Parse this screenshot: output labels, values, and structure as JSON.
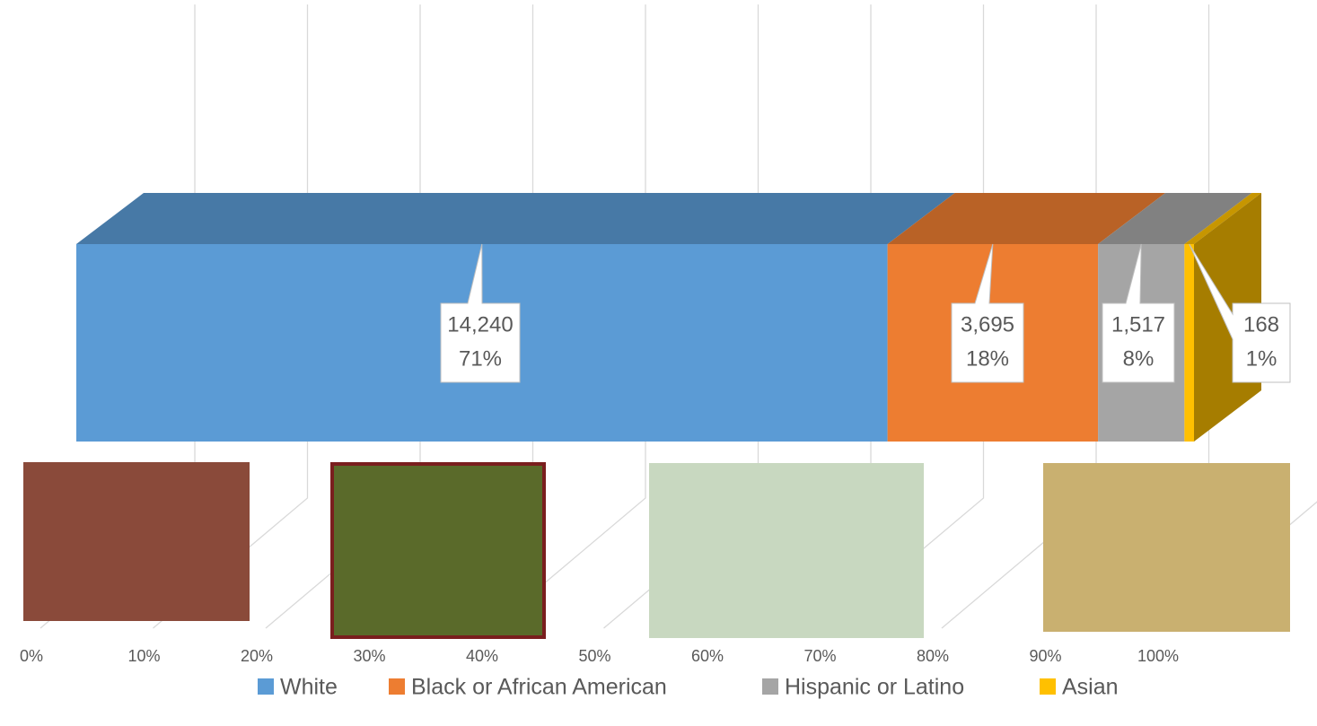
{
  "chart_data": {
    "type": "stacked_bar_3d",
    "categories": [
      ""
    ],
    "series": [
      {
        "name": "White",
        "color": "#5b9bd5",
        "values": [
          14240
        ],
        "value_labels": [
          "14,240"
        ],
        "shares": [
          71
        ],
        "share_labels": [
          "71%"
        ]
      },
      {
        "name": "Black or African American",
        "color": "#ed7d31",
        "values": [
          3695
        ],
        "value_labels": [
          "3,695"
        ],
        "shares": [
          18
        ],
        "share_labels": [
          "18%"
        ]
      },
      {
        "name": "Hispanic or Latino",
        "color": "#a5a5a5",
        "values": [
          1517
        ],
        "value_labels": [
          "1,517"
        ],
        "shares": [
          8
        ],
        "share_labels": [
          "8%"
        ]
      },
      {
        "name": "Asian",
        "color": "#ffc000",
        "values": [
          168
        ],
        "value_labels": [
          "168"
        ],
        "shares": [
          1
        ],
        "share_labels": [
          "1%"
        ]
      }
    ],
    "xlim": [
      0,
      100
    ],
    "xticks": [
      {
        "value": 0,
        "label": "0%"
      },
      {
        "value": 10,
        "label": "10%"
      },
      {
        "value": 20,
        "label": "20%"
      },
      {
        "value": 30,
        "label": "30%"
      },
      {
        "value": 40,
        "label": "40%"
      },
      {
        "value": 50,
        "label": "50%"
      },
      {
        "value": 60,
        "label": "60%"
      },
      {
        "value": 70,
        "label": "70%"
      },
      {
        "value": 80,
        "label": "80%"
      },
      {
        "value": 90,
        "label": "90%"
      },
      {
        "value": 100,
        "label": "100%"
      }
    ],
    "grid": true,
    "legend": "bottom"
  }
}
